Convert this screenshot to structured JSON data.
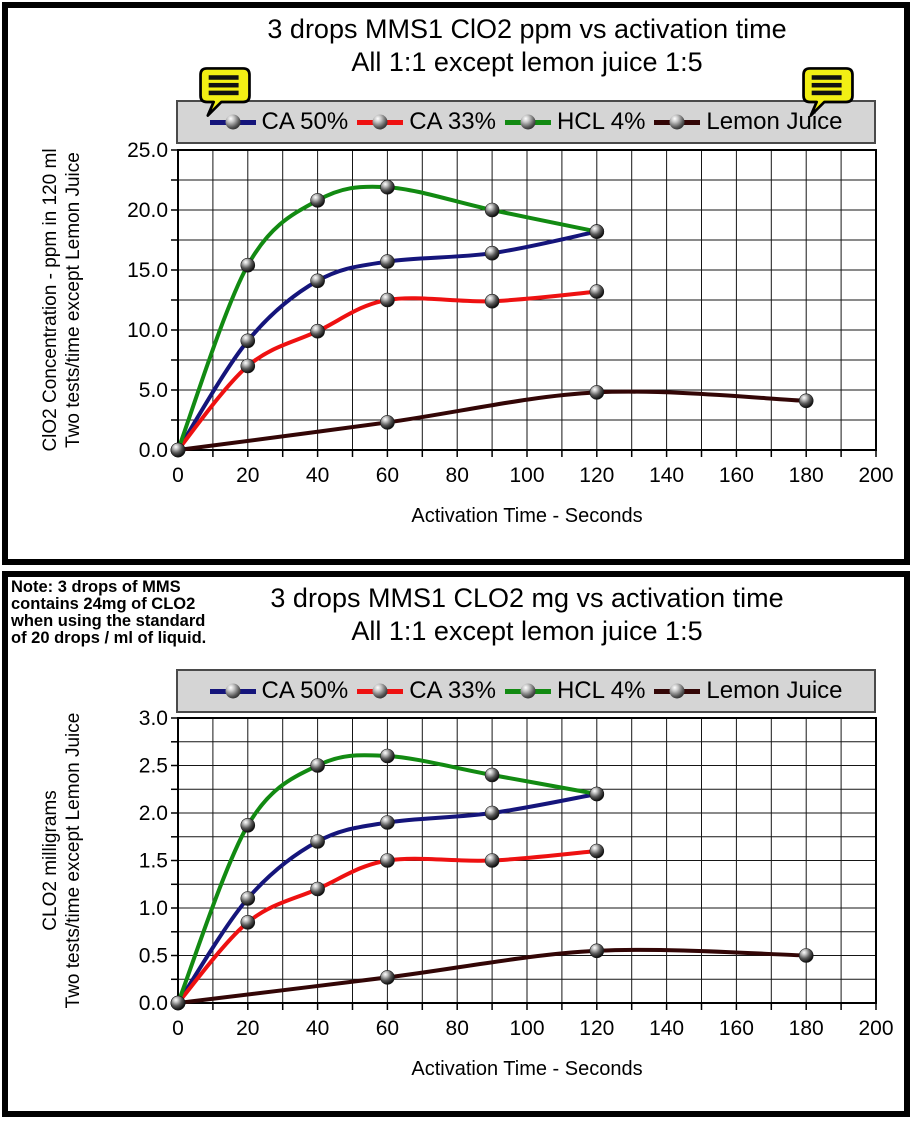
{
  "chart_data": [
    {
      "type": "line",
      "title": "3 drops MMS1 ClO2 ppm vs activation time",
      "subtitle": "All 1:1 except lemon juice 1:5",
      "xlabel": "Activation Time - Seconds",
      "ylabel_lines": [
        "ClO2 Concentration - ppm in 120 ml",
        "Two tests/time except Lemon Juice"
      ],
      "xlim": [
        0,
        200
      ],
      "ylim": [
        0,
        25
      ],
      "x_major": 20,
      "x_minor": 10,
      "y_major": 5,
      "y_minor": 2.5,
      "x_tick_decimals": 0,
      "y_tick_decimals": 1,
      "grid": true,
      "legend_position": "top",
      "series": [
        {
          "name": "CA 50%",
          "color": "#15157b",
          "x": [
            0,
            20,
            40,
            60,
            90,
            120
          ],
          "y": [
            0,
            9.1,
            14.1,
            15.7,
            16.4,
            18.2
          ]
        },
        {
          "name": "CA 33%",
          "color": "#ee1111",
          "x": [
            0,
            20,
            40,
            60,
            90,
            120
          ],
          "y": [
            0,
            7.0,
            9.9,
            12.5,
            12.4,
            13.2
          ]
        },
        {
          "name": "HCL 4%",
          "color": "#128a12",
          "x": [
            0,
            20,
            40,
            60,
            90,
            120
          ],
          "y": [
            0,
            15.4,
            20.8,
            21.9,
            20.0,
            18.2
          ]
        },
        {
          "name": "Lemon Juice",
          "color": "#330606",
          "x": [
            0,
            60,
            120,
            180
          ],
          "y": [
            0,
            2.3,
            4.8,
            4.1
          ]
        }
      ]
    },
    {
      "type": "line",
      "title": "3 drops MMS1 CLO2 mg vs activation time",
      "subtitle": "All 1:1 except lemon juice 1:5",
      "xlabel": "Activation Time - Seconds",
      "ylabel_lines": [
        "CLO2 milligrams",
        "Two tests/time except Lemon Juice"
      ],
      "xlim": [
        0,
        200
      ],
      "ylim": [
        0,
        3
      ],
      "x_major": 20,
      "x_minor": 10,
      "y_major": 0.5,
      "y_minor": 0.25,
      "x_tick_decimals": 0,
      "y_tick_decimals": 1,
      "grid": true,
      "legend_position": "top",
      "series": [
        {
          "name": "CA 50%",
          "color": "#15157b",
          "x": [
            0,
            20,
            40,
            60,
            90,
            120
          ],
          "y": [
            0,
            1.1,
            1.7,
            1.9,
            2.0,
            2.2
          ]
        },
        {
          "name": "CA 33%",
          "color": "#ee1111",
          "x": [
            0,
            20,
            40,
            60,
            90,
            120
          ],
          "y": [
            0,
            0.85,
            1.2,
            1.5,
            1.5,
            1.6
          ]
        },
        {
          "name": "HCL 4%",
          "color": "#128a12",
          "x": [
            0,
            20,
            40,
            60,
            90,
            120
          ],
          "y": [
            0,
            1.87,
            2.5,
            2.6,
            2.4,
            2.2
          ]
        },
        {
          "name": "Lemon Juice",
          "color": "#330606",
          "x": [
            0,
            60,
            120,
            180
          ],
          "y": [
            0,
            0.27,
            0.55,
            0.5
          ]
        }
      ]
    }
  ],
  "note": {
    "lines": [
      "Note: 3 drops of MMS",
      "contains 24mg of CLO2",
      "when using the standard",
      "of 20 drops / ml of liquid."
    ]
  },
  "icons": {
    "comment_callout": "comment-callout-icon"
  },
  "colors": {
    "legend_bg": "#d5d5d5",
    "grid": "#161616",
    "plot_border": "#000000",
    "panel_border": "#000000",
    "callout_yellow": "#f2ef14",
    "marker_dark": "#050505"
  }
}
